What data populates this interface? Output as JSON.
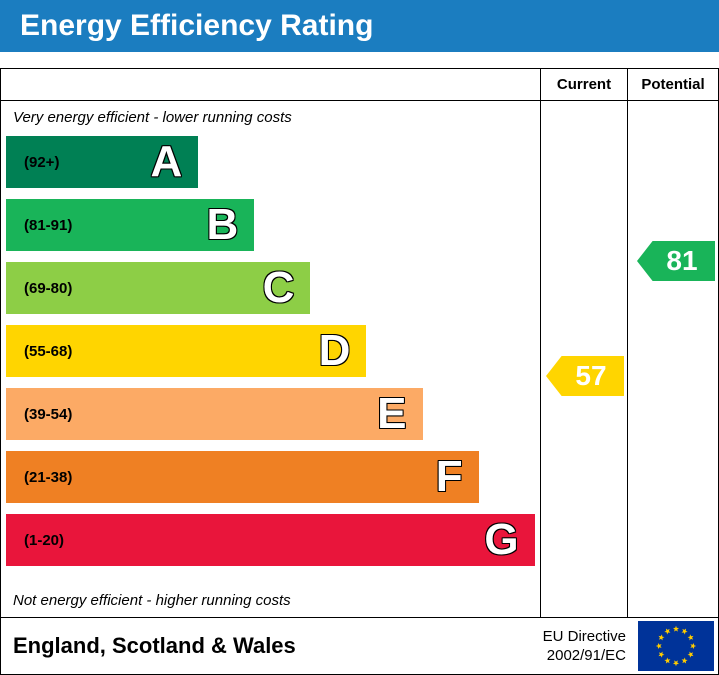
{
  "title": "Energy Efficiency Rating",
  "columns": {
    "current": "Current",
    "potential": "Potential"
  },
  "notes": {
    "top": "Very energy efficient - lower running costs",
    "bottom": "Not energy efficient - higher running costs"
  },
  "footer": {
    "region": "England, Scotland & Wales",
    "directive_line1": "EU Directive",
    "directive_line2": "2002/91/EC"
  },
  "colors": {
    "banner_bg": "#1b7dc0",
    "banner_text": "#ffffff",
    "eu_flag_blue": "#003399",
    "eu_flag_star": "#ffcc00"
  },
  "chart_data": {
    "type": "bar",
    "title": "Energy Efficiency Rating",
    "bands": [
      {
        "letter": "A",
        "range": "(92+)",
        "min": 92,
        "max": 100,
        "color": "#008054",
        "width_pct": 36
      },
      {
        "letter": "B",
        "range": "(81-91)",
        "min": 81,
        "max": 91,
        "color": "#19b459",
        "width_pct": 46.5
      },
      {
        "letter": "C",
        "range": "(69-80)",
        "min": 69,
        "max": 80,
        "color": "#8dce46",
        "width_pct": 57
      },
      {
        "letter": "D",
        "range": "(55-68)",
        "min": 55,
        "max": 68,
        "color": "#ffd500",
        "width_pct": 67.5
      },
      {
        "letter": "E",
        "range": "(39-54)",
        "min": 39,
        "max": 54,
        "color": "#fcaa65",
        "width_pct": 78
      },
      {
        "letter": "F",
        "range": "(21-38)",
        "min": 21,
        "max": 38,
        "color": "#ef8023",
        "width_pct": 88.5
      },
      {
        "letter": "G",
        "range": "(1-20)",
        "min": 1,
        "max": 20,
        "color": "#e9153b",
        "width_pct": 99
      }
    ],
    "current": {
      "value": 57,
      "band": "D",
      "color": "#ffd500"
    },
    "potential": {
      "value": 81,
      "band": "B",
      "color": "#19b459"
    }
  }
}
